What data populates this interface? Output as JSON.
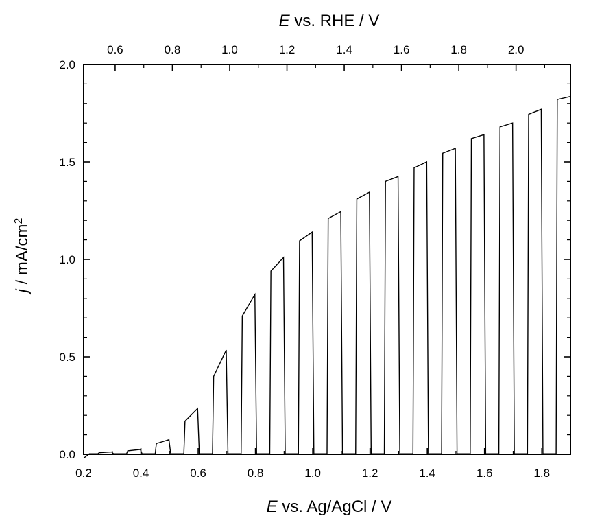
{
  "chart_data": {
    "type": "line",
    "title": "",
    "bottom_axis": {
      "title_italic": "E",
      "title_rest": " vs. Ag/AgCl / V",
      "range": [
        0.2,
        1.9
      ],
      "ticks": [
        0.2,
        0.4,
        0.6,
        0.8,
        1.0,
        1.2,
        1.4,
        1.6,
        1.8
      ],
      "tick_labels": [
        "0.2",
        "0.4",
        "0.6",
        "0.8",
        "1.0",
        "1.2",
        "1.4",
        "1.6",
        "1.8"
      ],
      "minor_step": 0.1
    },
    "top_axis": {
      "title_italic": "E",
      "title_rest": " vs. RHE / V",
      "tick_labels": [
        "0.6",
        "0.8",
        "1.0",
        "1.2",
        "1.4",
        "1.6",
        "1.8",
        "2.0"
      ],
      "tick_positions_bottom_units": [
        0.31,
        0.51,
        0.71,
        0.91,
        1.11,
        1.31,
        1.51,
        1.71
      ],
      "minor_ticks_bottom_units": [
        0.41,
        0.61,
        0.81,
        1.01,
        1.21,
        1.41,
        1.61,
        1.81
      ]
    },
    "left_axis": {
      "title_italic": "j",
      "title_rest": " / mA/cm",
      "title_superscript": "2",
      "range": [
        0.0,
        2.0
      ],
      "ticks": [
        0.0,
        0.5,
        1.0,
        1.5,
        2.0
      ],
      "tick_labels": [
        "0.0",
        "0.5",
        "1.0",
        "1.5",
        "2.0"
      ],
      "minor_step": 0.1
    },
    "grid": false,
    "legend": "none",
    "series": [
      {
        "description": "chopped-light linear sweep; each pulse lists on-potential, off-potential, photocurrent at light-on and light-off",
        "dark_baseline": 0.003,
        "start": [
          0.2,
          -0.02
        ],
        "pulses": [
          [
            0.25,
            0.3,
            0.008,
            0.012
          ],
          [
            0.35,
            0.4,
            0.018,
            0.025
          ],
          [
            0.45,
            0.5,
            0.055,
            0.075
          ],
          [
            0.55,
            0.6,
            0.17,
            0.235
          ],
          [
            0.65,
            0.7,
            0.4,
            0.535
          ],
          [
            0.75,
            0.8,
            0.71,
            0.82
          ],
          [
            0.85,
            0.9,
            0.94,
            1.01
          ],
          [
            0.95,
            1.0,
            1.095,
            1.14
          ],
          [
            1.05,
            1.1,
            1.21,
            1.245
          ],
          [
            1.15,
            1.2,
            1.31,
            1.345
          ],
          [
            1.25,
            1.3,
            1.4,
            1.425
          ],
          [
            1.35,
            1.4,
            1.47,
            1.5
          ],
          [
            1.45,
            1.5,
            1.545,
            1.57
          ],
          [
            1.55,
            1.6,
            1.62,
            1.64
          ],
          [
            1.65,
            1.7,
            1.68,
            1.7
          ],
          [
            1.75,
            1.8,
            1.745,
            1.77
          ],
          [
            1.85,
            1.9,
            1.82,
            1.835
          ]
        ]
      }
    ]
  }
}
